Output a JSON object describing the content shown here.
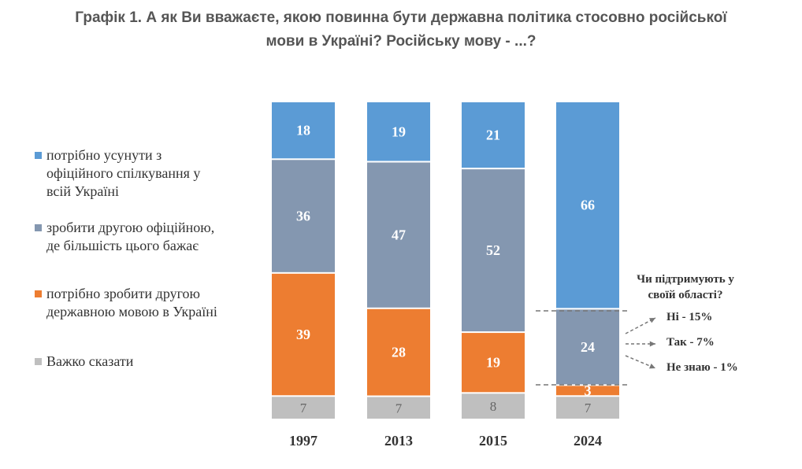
{
  "title": {
    "line1": "Графік 1. А як Ви вважаєте, якою повинна бути державна політика стосовно російської",
    "line2": "мови в Україні? Російську мову - ...?"
  },
  "chart_data": {
    "type": "bar",
    "stacked": true,
    "categories": [
      "1997",
      "2013",
      "2015",
      "2024"
    ],
    "series": [
      {
        "name": "потрібно усунути з офіційного спілкування у всій Україні",
        "color": "#5b9bd5",
        "values": [
          18,
          19,
          21,
          66
        ]
      },
      {
        "name": "зробити другою офіційною, де більшість цього бажає",
        "color": "#8497b0",
        "values": [
          36,
          47,
          52,
          24
        ]
      },
      {
        "name": "потрібно зробити другою державною мовою в Україні",
        "color": "#ed7d31",
        "values": [
          39,
          28,
          19,
          3
        ]
      },
      {
        "name": "Важко сказати",
        "color": "#bfbfbf",
        "values": [
          7,
          7,
          8,
          7
        ]
      }
    ],
    "legend_position": "left",
    "grid": false,
    "annotation": {
      "question": "Чи підтримують у своїй області?",
      "answers": [
        "Ні - 15%",
        "Так - 7%",
        "Не знаю - 1%"
      ]
    }
  },
  "legend": {
    "items": [
      {
        "label": "потрібно усунути з\nофіційного спілкування у\nвсій Україні",
        "color": "#5b9bd5"
      },
      {
        "label": "зробити другою офіційною,\nде більшість цього бажає",
        "color": "#8497b0"
      },
      {
        "label": "потрібно зробити другою\nдержавною мовою в Україні",
        "color": "#ed7d31"
      },
      {
        "label": "Важко сказати",
        "color": "#bfbfbf"
      }
    ]
  }
}
